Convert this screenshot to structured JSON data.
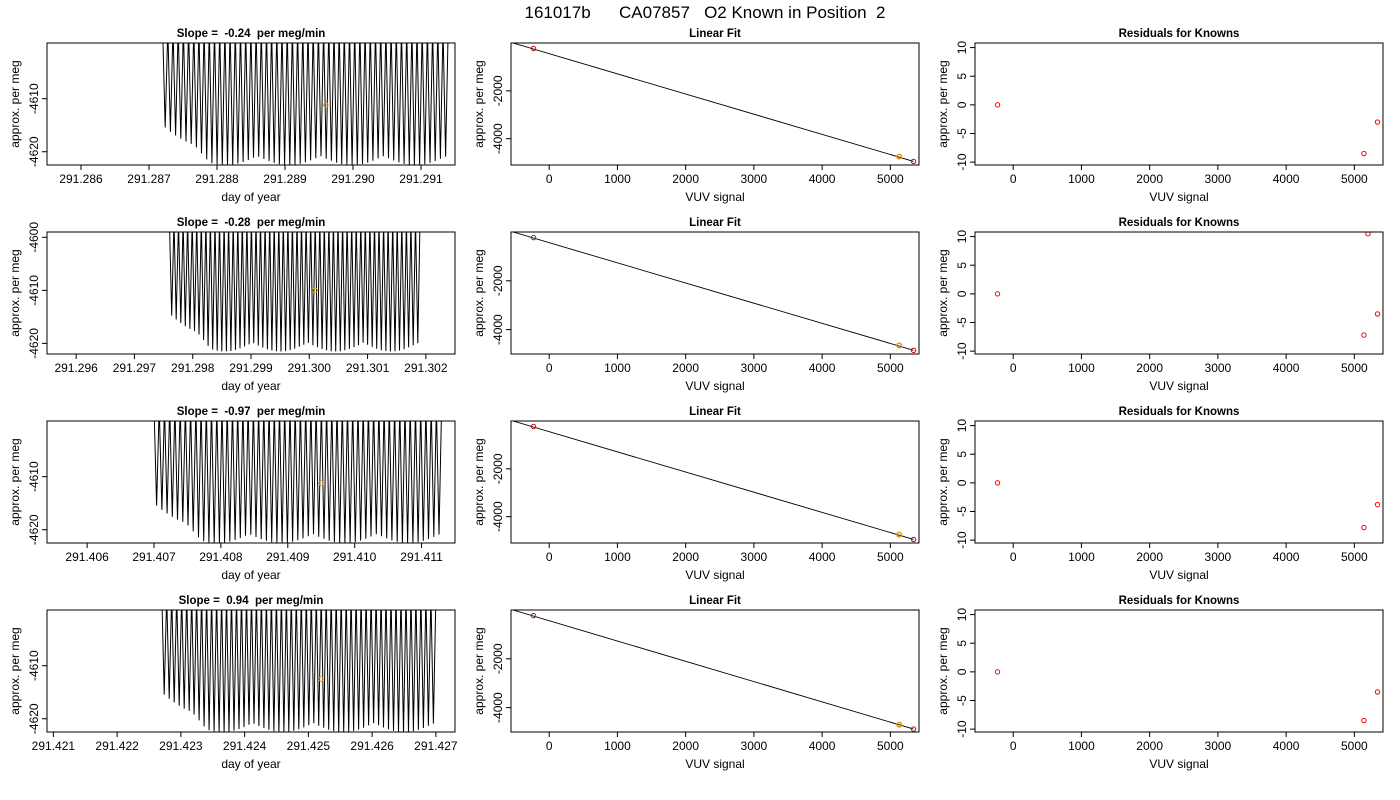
{
  "title": "161017b      CA07857   O2 Known in Position  2",
  "labels": {
    "x_time": "day of year",
    "y_all": "approx. per meg",
    "x_vuv": "VUV signal",
    "fit_title": "Linear Fit",
    "resid_title": "Residuals for Knowns"
  },
  "colors": {
    "trace": "#000000",
    "mean_marker": "#e69f00",
    "fit_point": "#cc0000",
    "fit_line": "#000000",
    "residual_point": "#ff0000"
  },
  "chart_data": [
    {
      "type": "line",
      "row": 1,
      "panel": "time-series",
      "title": "Slope =  -0.24  per meg/min",
      "xlabel": "day of year",
      "ylabel": "approx. per meg",
      "xlim": [
        291.2855,
        291.2915
      ],
      "ylim": [
        -4622.5,
        -4599.5
      ],
      "xticks": [
        "291.286",
        "291.287",
        "291.288",
        "291.289",
        "291.290",
        "291.291"
      ],
      "yticks": [
        -4610,
        -4620
      ],
      "trace_range": [
        291.2872,
        291.2914
      ],
      "oscillation": [
        -4622,
        -4600
      ],
      "cycles": 55,
      "mean_point": [
        291.2896,
        -4611.2
      ]
    },
    {
      "type": "scatter",
      "row": 1,
      "panel": "linear-fit",
      "title": "Linear Fit",
      "xlabel": "VUV signal",
      "ylabel": "approx. per meg",
      "xlim": [
        -560,
        5420
      ],
      "ylim": [
        -5100,
        0
      ],
      "xticks": [
        "0",
        "1000",
        "2000",
        "3000",
        "4000",
        "5000"
      ],
      "yticks": [
        -2000,
        -4000
      ],
      "points": [
        [
          -230,
          -230
        ],
        [
          5130,
          -4750
        ],
        [
          5340,
          -4950
        ]
      ],
      "highlight": [
        5130,
        -4750
      ],
      "line": [
        [
          -530,
          0
        ],
        [
          5340,
          -4950
        ]
      ]
    },
    {
      "type": "scatter",
      "row": 1,
      "panel": "residuals",
      "title": "Residuals for Knowns",
      "xlabel": "VUV signal",
      "ylabel": "approx. per meg",
      "xlim": [
        -560,
        5420
      ],
      "ylim": [
        -10.5,
        10.8
      ],
      "xticks": [
        "0",
        "1000",
        "2000",
        "3000",
        "4000",
        "5000"
      ],
      "yticks": [
        "10",
        "5",
        "0",
        "-5",
        "-10"
      ],
      "points": [
        [
          -230,
          0
        ],
        [
          5140,
          -8.5
        ],
        [
          5340,
          -3
        ]
      ]
    },
    {
      "type": "line",
      "row": 2,
      "panel": "time-series",
      "title": "Slope =  -0.28  per meg/min",
      "xlabel": "day of year",
      "ylabel": "approx. per meg",
      "xlim": [
        291.2955,
        291.3025
      ],
      "ylim": [
        -4622,
        -4599
      ],
      "xticks": [
        "291.296",
        "291.297",
        "291.298",
        "291.299",
        "291.300",
        "291.301",
        "291.302"
      ],
      "yticks": [
        -4600,
        -4610,
        -4620
      ],
      "trace_range": [
        291.2976,
        291.3019
      ],
      "oscillation": [
        -4621,
        -4600
      ],
      "cycles": 55,
      "mean_point": [
        291.3001,
        -4610
      ]
    },
    {
      "type": "scatter",
      "row": 2,
      "panel": "linear-fit",
      "title": "Linear Fit",
      "xlabel": "VUV signal",
      "ylabel": "approx. per meg",
      "xlim": [
        -560,
        5420
      ],
      "ylim": [
        -5000,
        0
      ],
      "xticks": [
        "0",
        "1000",
        "2000",
        "3000",
        "4000",
        "5000"
      ],
      "yticks": [
        -2000,
        -4000
      ],
      "points": [
        [
          -230,
          -230
        ],
        [
          5130,
          -4650
        ],
        [
          5340,
          -4850
        ]
      ],
      "highlight": [
        5130,
        -4650
      ],
      "line": [
        [
          -530,
          0
        ],
        [
          5340,
          -4850
        ]
      ]
    },
    {
      "type": "scatter",
      "row": 2,
      "panel": "residuals",
      "title": "Residuals for Knowns",
      "xlabel": "VUV signal",
      "ylabel": "approx. per meg",
      "xlim": [
        -560,
        5420
      ],
      "ylim": [
        -10.5,
        10.8
      ],
      "xticks": [
        "0",
        "1000",
        "2000",
        "3000",
        "4000",
        "5000"
      ],
      "yticks": [
        "10",
        "5",
        "0",
        "-5",
        "-10"
      ],
      "points": [
        [
          -230,
          0
        ],
        [
          5140,
          -7.2
        ],
        [
          5200,
          10.5
        ],
        [
          5340,
          -3.5
        ]
      ]
    },
    {
      "type": "line",
      "row": 3,
      "panel": "time-series",
      "title": "Slope =  -0.97  per meg/min",
      "xlabel": "day of year",
      "ylabel": "approx. per meg",
      "xlim": [
        291.4054,
        291.4115
      ],
      "ylim": [
        -4622.5,
        -4599.5
      ],
      "xticks": [
        "291.406",
        "291.407",
        "291.408",
        "291.409",
        "291.410",
        "291.411"
      ],
      "yticks": [
        -4610,
        -4620
      ],
      "trace_range": [
        291.407,
        291.4113
      ],
      "oscillation": [
        -4622,
        -4600
      ],
      "cycles": 55,
      "mean_point": [
        291.4095,
        -4611.2
      ]
    },
    {
      "type": "scatter",
      "row": 3,
      "panel": "linear-fit",
      "title": "Linear Fit",
      "xlabel": "VUV signal",
      "ylabel": "approx. per meg",
      "xlim": [
        -560,
        5420
      ],
      "ylim": [
        -5100,
        0
      ],
      "xticks": [
        "0",
        "1000",
        "2000",
        "3000",
        "4000",
        "5000"
      ],
      "yticks": [
        -2000,
        -4000
      ],
      "points": [
        [
          -230,
          -230
        ],
        [
          5130,
          -4750
        ],
        [
          5340,
          -4950
        ]
      ],
      "highlight": [
        5130,
        -4750
      ],
      "line": [
        [
          -530,
          0
        ],
        [
          5340,
          -4950
        ]
      ]
    },
    {
      "type": "scatter",
      "row": 3,
      "panel": "residuals",
      "title": "Residuals for Knowns",
      "xlabel": "VUV signal",
      "ylabel": "approx. per meg",
      "xlim": [
        -560,
        5420
      ],
      "ylim": [
        -10.5,
        10.8
      ],
      "xticks": [
        "0",
        "1000",
        "2000",
        "3000",
        "4000",
        "5000"
      ],
      "yticks": [
        "10",
        "5",
        "0",
        "-5",
        "-10"
      ],
      "points": [
        [
          -230,
          0
        ],
        [
          5140,
          -7.8
        ],
        [
          5340,
          -3.8
        ]
      ]
    },
    {
      "type": "line",
      "row": 4,
      "panel": "time-series",
      "title": "Slope =  0.94  per meg/min",
      "xlabel": "day of year",
      "ylabel": "approx. per meg",
      "xlim": [
        291.4209,
        291.4273
      ],
      "ylim": [
        -4622.5,
        -4599.5
      ],
      "xticks": [
        "291.421",
        "291.422",
        "291.423",
        "291.424",
        "291.425",
        "291.426",
        "291.427"
      ],
      "yticks": [
        -4610,
        -4620
      ],
      "trace_range": [
        291.4227,
        291.427
      ],
      "oscillation": [
        -4622,
        -4600
      ],
      "cycles": 55,
      "mean_point": [
        291.4252,
        -4612.5
      ]
    },
    {
      "type": "scatter",
      "row": 4,
      "panel": "linear-fit",
      "title": "Linear Fit",
      "xlabel": "VUV signal",
      "ylabel": "approx. per meg",
      "xlim": [
        -560,
        5420
      ],
      "ylim": [
        -5000,
        0
      ],
      "xticks": [
        "0",
        "1000",
        "2000",
        "3000",
        "4000",
        "5000"
      ],
      "yticks": [
        -2000,
        -4000
      ],
      "points": [
        [
          -230,
          -230
        ],
        [
          5130,
          -4700
        ],
        [
          5340,
          -4880
        ]
      ],
      "highlight": [
        5130,
        -4700
      ],
      "line": [
        [
          -530,
          0
        ],
        [
          5340,
          -4880
        ]
      ]
    },
    {
      "type": "scatter",
      "row": 4,
      "panel": "residuals",
      "title": "Residuals for Knowns",
      "xlabel": "VUV signal",
      "ylabel": "approx. per meg",
      "xlim": [
        -560,
        5420
      ],
      "ylim": [
        -10.5,
        10.8
      ],
      "xticks": [
        "0",
        "1000",
        "2000",
        "3000",
        "4000",
        "5000"
      ],
      "yticks": [
        "10",
        "5",
        "0",
        "-5",
        "-10"
      ],
      "points": [
        [
          -230,
          0
        ],
        [
          5140,
          -8.5
        ],
        [
          5340,
          -3.5
        ]
      ]
    }
  ]
}
